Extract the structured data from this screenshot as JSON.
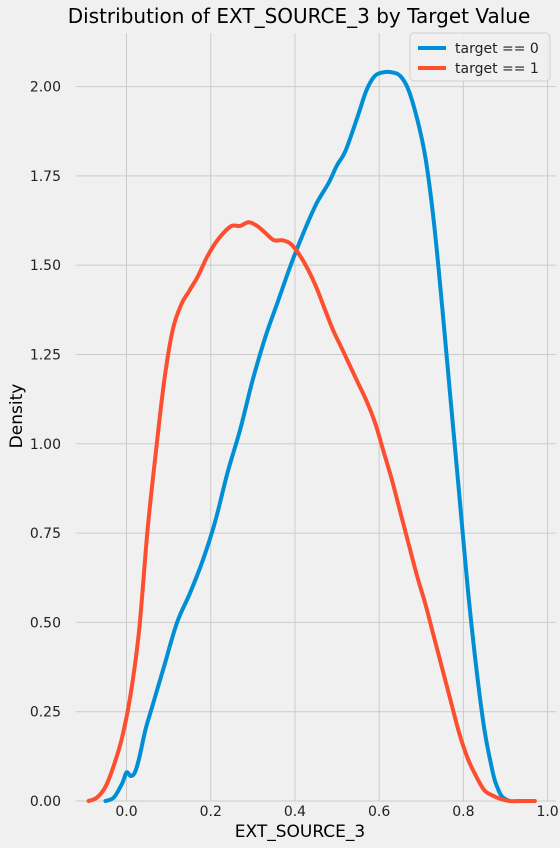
{
  "chart_data": {
    "type": "line",
    "title": "Distribution of EXT_SOURCE_3 by Target Value",
    "xlabel": "EXT_SOURCE_3",
    "ylabel": "Density",
    "xlim": [
      -0.12,
      1.02
    ],
    "ylim": [
      0,
      2.15
    ],
    "xticks": [
      0.0,
      0.2,
      0.4,
      0.6,
      0.8,
      1.0
    ],
    "xtick_labels": [
      "0.0",
      "0.2",
      "0.4",
      "0.6",
      "0.8",
      "1.0"
    ],
    "yticks": [
      0,
      0.25,
      0.5,
      0.75,
      1.0,
      1.25,
      1.5,
      1.75,
      2.0
    ],
    "ytick_labels": [
      "0.00",
      "0.25",
      "0.50",
      "0.75",
      "1.00",
      "1.25",
      "1.50",
      "1.75",
      "2.00"
    ],
    "grid": true,
    "legend_position": "top-right",
    "series": [
      {
        "name": "target == 0",
        "color": "#008fd5",
        "x": [
          -0.05,
          -0.03,
          -0.01,
          0.0,
          0.01,
          0.02,
          0.03,
          0.045,
          0.06,
          0.09,
          0.12,
          0.15,
          0.18,
          0.21,
          0.24,
          0.27,
          0.3,
          0.33,
          0.36,
          0.39,
          0.42,
          0.45,
          0.48,
          0.5,
          0.52,
          0.55,
          0.57,
          0.59,
          0.61,
          0.63,
          0.65,
          0.67,
          0.69,
          0.71,
          0.73,
          0.75,
          0.77,
          0.79,
          0.81,
          0.83,
          0.85,
          0.87,
          0.88,
          0.89,
          0.9,
          0.91
        ],
        "y": [
          0.0,
          0.01,
          0.05,
          0.08,
          0.07,
          0.08,
          0.12,
          0.2,
          0.26,
          0.38,
          0.5,
          0.58,
          0.67,
          0.78,
          0.92,
          1.04,
          1.18,
          1.3,
          1.4,
          1.5,
          1.59,
          1.67,
          1.73,
          1.78,
          1.82,
          1.92,
          1.99,
          2.03,
          2.04,
          2.04,
          2.03,
          1.99,
          1.91,
          1.8,
          1.62,
          1.38,
          1.12,
          0.86,
          0.6,
          0.38,
          0.2,
          0.08,
          0.04,
          0.015,
          0.005,
          0.0
        ]
      },
      {
        "name": "target == 1",
        "color": "#fc4f30",
        "x": [
          -0.09,
          -0.07,
          -0.05,
          -0.03,
          -0.01,
          0.01,
          0.03,
          0.05,
          0.07,
          0.09,
          0.11,
          0.13,
          0.15,
          0.17,
          0.19,
          0.21,
          0.23,
          0.25,
          0.27,
          0.29,
          0.31,
          0.33,
          0.35,
          0.37,
          0.39,
          0.41,
          0.43,
          0.45,
          0.47,
          0.49,
          0.51,
          0.53,
          0.55,
          0.57,
          0.59,
          0.61,
          0.63,
          0.65,
          0.67,
          0.69,
          0.71,
          0.73,
          0.75,
          0.77,
          0.79,
          0.81,
          0.83,
          0.85,
          0.87,
          0.89,
          0.91,
          0.93,
          0.95,
          0.97
        ],
        "y": [
          0.0,
          0.01,
          0.04,
          0.1,
          0.18,
          0.3,
          0.48,
          0.76,
          0.98,
          1.18,
          1.32,
          1.39,
          1.43,
          1.47,
          1.52,
          1.56,
          1.59,
          1.61,
          1.61,
          1.62,
          1.61,
          1.59,
          1.57,
          1.57,
          1.56,
          1.53,
          1.49,
          1.44,
          1.38,
          1.32,
          1.27,
          1.22,
          1.17,
          1.12,
          1.06,
          0.98,
          0.9,
          0.81,
          0.72,
          0.63,
          0.55,
          0.46,
          0.37,
          0.28,
          0.19,
          0.12,
          0.07,
          0.03,
          0.015,
          0.005,
          0.0,
          0.0,
          0.0,
          0.0
        ]
      }
    ]
  }
}
